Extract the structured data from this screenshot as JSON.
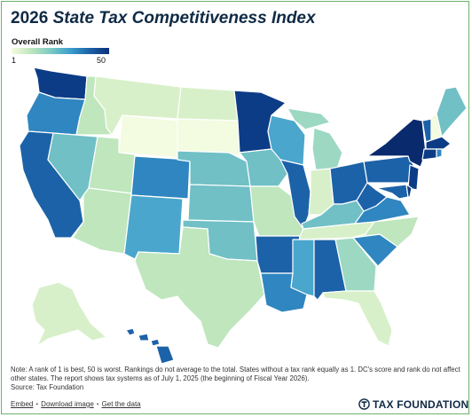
{
  "header": {
    "year": "2026",
    "title_rest": "State Tax Competitiveness Index"
  },
  "legend": {
    "title": "Overall Rank",
    "min_label": "1",
    "max_label": "50",
    "colors": [
      "#f3fbe0",
      "#bfe6bd",
      "#7ccbc4",
      "#3c9fcc",
      "#1c62a8",
      "#0c2f7a"
    ]
  },
  "footer": {
    "note": "Note: A rank of 1 is best, 50 is worst. Rankings do not average to the total. States without a tax rank equally as 1. DC's score and rank do not affect other states. The report shows tax systems as of July 1, 2025 (the beginning of Fiscal Year 2026).",
    "source": "Source: Tax Foundation",
    "links": [
      "Embed",
      "Download image",
      "Get the data"
    ],
    "brand": "TAX FOUNDATION"
  },
  "map": {
    "colors": {
      "c1": "#f3fbe0",
      "c2": "#d8f0c9",
      "c3": "#bfe6bd",
      "c4": "#9dd8c2",
      "c5": "#70c0c6",
      "c6": "#4aa6cc",
      "c7": "#2f86c0",
      "c8": "#1c62a8",
      "c9": "#0c3c86",
      "c10": "#0a2a6e"
    }
  }
}
